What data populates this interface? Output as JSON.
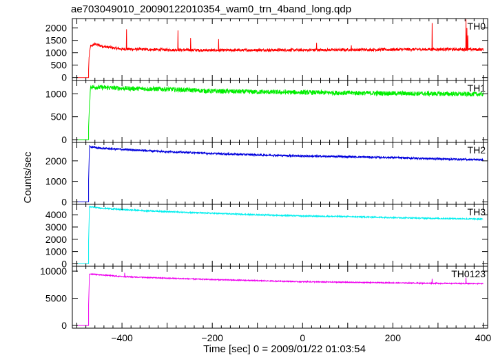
{
  "title": "ae703049010_20090122010354_wam0_trn_4band_long.qdp",
  "ylabel": "Counts/sec",
  "xlabel": "Time [sec] 0 = 2009/01/22 01:03:54",
  "xticks": [
    -400,
    -200,
    0,
    200,
    400
  ],
  "xlim": [
    -510,
    410
  ],
  "chart_data": [
    {
      "type": "line",
      "series": [
        {
          "name": "TH0",
          "color": "#ff0000",
          "pre": {
            "x": [
              -500,
              -480
            ],
            "y": 0
          },
          "rise": 15,
          "points": [
            [
              -474,
              0
            ],
            [
              -473,
              800
            ],
            [
              -470,
              1250
            ],
            [
              -460,
              1350
            ],
            [
              -440,
              1250
            ],
            [
              -400,
              1150
            ],
            [
              -300,
              1120
            ],
            [
              -200,
              1100
            ],
            [
              -100,
              1110
            ],
            [
              0,
              1110
            ],
            [
              100,
              1120
            ],
            [
              200,
              1130
            ],
            [
              300,
              1140
            ],
            [
              400,
              1130
            ]
          ],
          "noise": 55,
          "spikes": [
            [
              -390,
              1950
            ],
            [
              -276,
              1900
            ],
            [
              -248,
              1600
            ],
            [
              -186,
              1550
            ],
            [
              31,
              1400
            ],
            [
              108,
              1300
            ],
            [
              287,
              2200
            ],
            [
              362,
              2350
            ],
            [
              364,
              2000
            ],
            [
              366,
              1700
            ]
          ]
        }
      ],
      "ylim": [
        -120,
        2380
      ],
      "yticks": [
        0,
        500,
        1000,
        1500,
        2000
      ]
    },
    {
      "type": "line",
      "series": [
        {
          "name": "TH1",
          "color": "#00ee00",
          "pre": {
            "x": [
              -500,
              -480
            ],
            "y": 0
          },
          "rise": 30,
          "points": [
            [
              -474,
              0
            ],
            [
              -472,
              700
            ],
            [
              -470,
              1150
            ],
            [
              -400,
              1120
            ],
            [
              -300,
              1100
            ],
            [
              -200,
              1060
            ],
            [
              -100,
              1040
            ],
            [
              0,
              1030
            ],
            [
              100,
              1020
            ],
            [
              200,
              1010
            ],
            [
              300,
              1000
            ],
            [
              400,
              990
            ]
          ],
          "noise": 50,
          "spikes": []
        }
      ],
      "ylim": [
        -60,
        1290
      ],
      "yticks": [
        0,
        500,
        1000
      ]
    },
    {
      "type": "line",
      "series": [
        {
          "name": "TH2",
          "color": "#0000dd",
          "pre": {
            "x": [
              -500,
              -480
            ],
            "y": 0
          },
          "rise": 40,
          "points": [
            [
              -474,
              0
            ],
            [
              -472,
              2700
            ],
            [
              -450,
              2620
            ],
            [
              -400,
              2560
            ],
            [
              -300,
              2450
            ],
            [
              -200,
              2360
            ],
            [
              -100,
              2290
            ],
            [
              0,
              2240
            ],
            [
              100,
              2200
            ],
            [
              200,
              2160
            ],
            [
              300,
              2100
            ],
            [
              400,
              2050
            ]
          ],
          "noise": 45,
          "spikes": []
        }
      ],
      "ylim": [
        -120,
        2900
      ],
      "yticks": [
        0,
        1000,
        2000
      ]
    },
    {
      "type": "line",
      "series": [
        {
          "name": "TH3",
          "color": "#00eeee",
          "pre": {
            "x": [
              -500,
              -480
            ],
            "y": 0
          },
          "rise": 40,
          "points": [
            [
              -474,
              0
            ],
            [
              -472,
              4650
            ],
            [
              -450,
              4550
            ],
            [
              -400,
              4420
            ],
            [
              -300,
              4250
            ],
            [
              -200,
              4120
            ],
            [
              -100,
              4000
            ],
            [
              0,
              3900
            ],
            [
              100,
              3850
            ],
            [
              200,
              3770
            ],
            [
              300,
              3700
            ],
            [
              400,
              3650
            ]
          ],
          "noise": 50,
          "spikes": []
        }
      ],
      "ylim": [
        -200,
        4850
      ],
      "yticks": [
        0,
        1000,
        2000,
        3000,
        4000
      ]
    },
    {
      "type": "line",
      "series": [
        {
          "name": "TH0123",
          "color": "#ee00ee",
          "pre": {
            "x": [
              -500,
              -480
            ],
            "y": 0
          },
          "rise": 60,
          "points": [
            [
              -474,
              0
            ],
            [
              -472,
              9500
            ],
            [
              -400,
              9000
            ],
            [
              -300,
              8700
            ],
            [
              -200,
              8450
            ],
            [
              -100,
              8250
            ],
            [
              0,
              8050
            ],
            [
              100,
              7950
            ],
            [
              200,
              7850
            ],
            [
              300,
              7750
            ],
            [
              400,
              7700
            ]
          ],
          "noise": 90,
          "spikes": [
            [
              -394,
              9700
            ],
            [
              287,
              8600
            ],
            [
              362,
              8800
            ]
          ]
        }
      ],
      "ylim": [
        -500,
        10900
      ],
      "yticks": [
        0,
        5000,
        10000
      ]
    }
  ]
}
